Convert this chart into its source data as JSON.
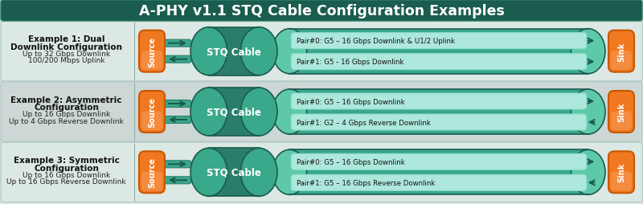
{
  "title": "A-PHY v1.1 STQ Cable Configuration Examples",
  "title_bg": "#1e6e5e",
  "title_color": "#ffffff",
  "title_fontsize": 12.5,
  "bg_color": "#d8e4e2",
  "row_bg_even": "#dce8e4",
  "row_bg_odd": "#cdd8d6",
  "examples": [
    {
      "title_bold": "Example 1: Dual\nDownlink Configuration",
      "subtitle": "Up to 32 Gbps Downlink\n100/200 Mbps Uplink",
      "pair0": "Pair#0: G5 – 16 Gbps Downlink & U1/2 Uplink",
      "pair1": "Pair#1: G5 - 16 Gbps Downlink",
      "pair0_right": true,
      "pair1_right": true
    },
    {
      "title_bold": "Example 2: Asymmetric\nConfiguration",
      "subtitle": "Up to 16 Gbps Downlink\nUp to 4 Gbps Reverse Downlink",
      "pair0": "Pair#0: G5 – 16 Gbps Downlink",
      "pair1": "Pair#1: G2 – 4 Gbps Reverse Downlink",
      "pair0_right": true,
      "pair1_right": false
    },
    {
      "title_bold": "Example 3: Symmetric\nConfiguration",
      "subtitle": "Up to 16 Gbps Downlink\nUp to 16 Gbps Reverse Downlink",
      "pair0": "Pair#0: G5 – 16 Gbps Downlink",
      "pair1": "Pair#1: G5 – 16 Gbps Reverse Downlink",
      "pair0_right": true,
      "pair1_right": false
    }
  ],
  "teal_darkest": "#1a5c4e",
  "teal_dark": "#2a7d6a",
  "teal_mid": "#3aa88a",
  "teal_light": "#5ec9a8",
  "teal_pale": "#8dddd0",
  "teal_vlight": "#aee8dc",
  "orange_dark": "#c85800",
  "orange": "#f07820",
  "orange_light": "#f8a060",
  "white": "#ffffff",
  "dark_text": "#111111",
  "mid_text": "#222222"
}
